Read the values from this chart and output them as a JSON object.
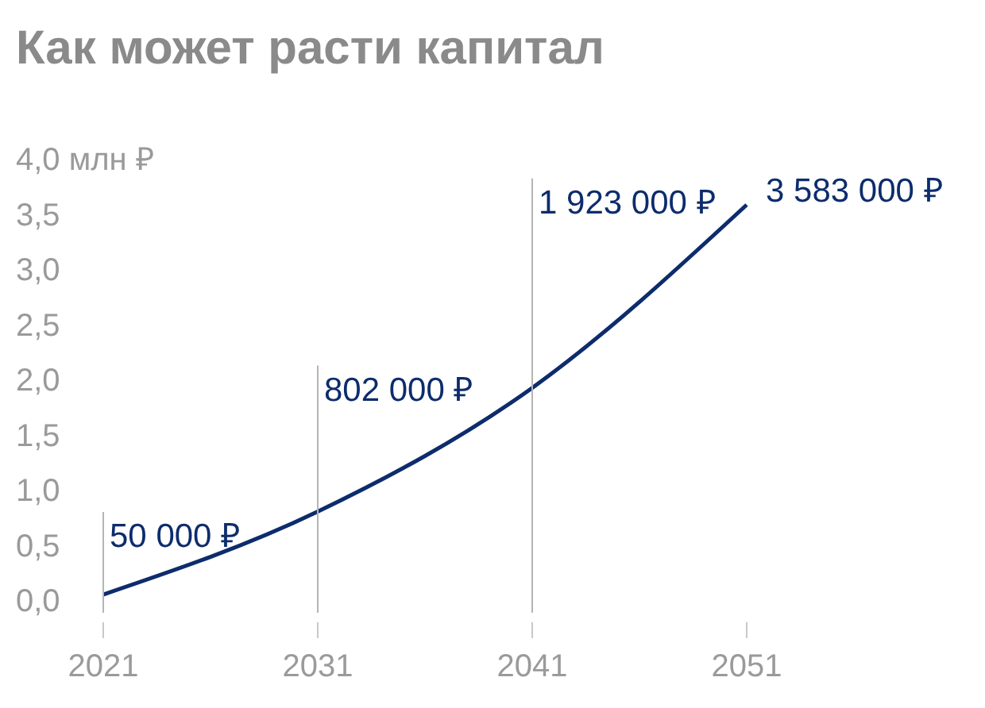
{
  "chart_data": {
    "type": "line",
    "title": "Как может расти капитал",
    "x": [
      2021,
      2031,
      2041,
      2051
    ],
    "series": [
      {
        "color": "#0d2c6c",
        "values": [
          0.05,
          0.802,
          1.923,
          3.583
        ]
      }
    ],
    "annotations": [
      "50 000 ₽",
      "802 000 ₽",
      "1 923 000 ₽",
      "3 583 000 ₽"
    ],
    "xlim": [
      2021,
      2051
    ],
    "xticks": [
      2021,
      2031,
      2041,
      2051
    ],
    "ylim": [
      0,
      4
    ],
    "yticks": [
      {
        "value": 0,
        "label": "0,0"
      },
      {
        "value": 0.5,
        "label": "0,5"
      },
      {
        "value": 1,
        "label": "1,0"
      },
      {
        "value": 1.5,
        "label": "1,5"
      },
      {
        "value": 2,
        "label": "2,0"
      },
      {
        "value": 2.5,
        "label": "2,5"
      },
      {
        "value": 3,
        "label": "3,0"
      },
      {
        "value": 3.5,
        "label": "3,5"
      },
      {
        "value": 4,
        "label": "4,0 млн ₽"
      }
    ],
    "marker": "none",
    "line_style": "solid"
  }
}
